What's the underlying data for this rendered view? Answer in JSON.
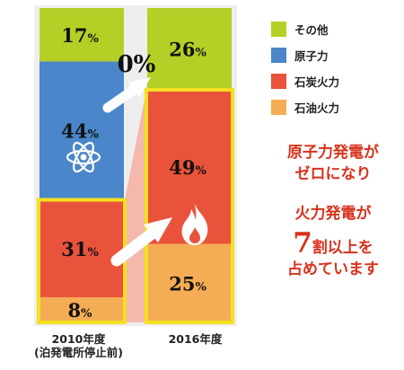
{
  "chart_data": {
    "type": "bar",
    "stacked": true,
    "categories": [
      "2010年度",
      "2016年度"
    ],
    "category_notes": [
      "(泊発電所停止前)",
      ""
    ],
    "series": [
      {
        "name": "石油火力",
        "values": [
          8,
          25
        ],
        "color": "#f5ad55",
        "labels": [
          "8%",
          "25%"
        ]
      },
      {
        "name": "石炭火力",
        "values": [
          31,
          49
        ],
        "color": "#e9533c",
        "labels": [
          "31%",
          "49%"
        ]
      },
      {
        "name": "原子力",
        "values": [
          44,
          0
        ],
        "color": "#4a86c9",
        "labels": [
          "44%",
          ""
        ]
      },
      {
        "name": "その他",
        "values": [
          17,
          26
        ],
        "color": "#b5cf26",
        "labels": [
          "17%",
          "26%"
        ]
      }
    ],
    "legend": {
      "position": "right",
      "order": [
        "その他",
        "原子力",
        "石炭火力",
        "石油火力"
      ]
    },
    "annotations": {
      "zero_label": "0%"
    },
    "highlight_color": "#f5e020",
    "connector_color": "#f5b8ac",
    "icons": [
      "atom-icon",
      "flame-icon",
      "arrow-icon"
    ]
  },
  "messages": {
    "line1": "原子力発電が",
    "line2": "ゼロになり",
    "line3": "火力発電が",
    "line4_big": "7",
    "line4_rest": "割以上を",
    "line5": "占めています"
  }
}
